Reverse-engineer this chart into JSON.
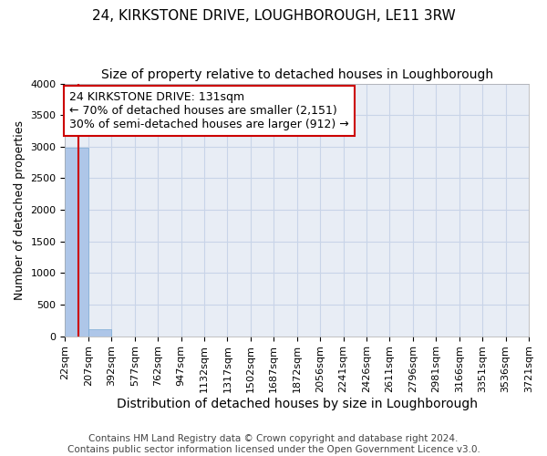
{
  "title": "24, KIRKSTONE DRIVE, LOUGHBOROUGH, LE11 3RW",
  "subtitle": "Size of property relative to detached houses in Loughborough",
  "xlabel": "Distribution of detached houses by size in Loughborough",
  "ylabel": "Number of detached properties",
  "bar_values": [
    2980,
    110,
    0,
    0,
    0,
    0,
    0,
    0,
    0,
    0,
    0,
    0,
    0,
    0,
    0,
    0,
    0,
    0,
    0,
    0
  ],
  "x_labels": [
    "22sqm",
    "207sqm",
    "392sqm",
    "577sqm",
    "762sqm",
    "947sqm",
    "1132sqm",
    "1317sqm",
    "1502sqm",
    "1687sqm",
    "1872sqm",
    "2056sqm",
    "2241sqm",
    "2426sqm",
    "2611sqm",
    "2796sqm",
    "2981sqm",
    "3166sqm",
    "3351sqm",
    "3536sqm",
    "3721sqm"
  ],
  "ylim": [
    0,
    4000
  ],
  "bar_color": "#aec6e8",
  "bar_edge_color": "#7aaad4",
  "grid_color": "#c8d4e8",
  "bg_color": "#e8edf5",
  "annotation_line1": "24 KIRKSTONE DRIVE: 131sqm",
  "annotation_line2": "← 70% of detached houses are smaller (2,151)",
  "annotation_line3": "30% of semi-detached houses are larger (912) →",
  "vline_color": "#cc0000",
  "annotation_box_color": "#cc0000",
  "footer_line1": "Contains HM Land Registry data © Crown copyright and database right 2024.",
  "footer_line2": "Contains public sector information licensed under the Open Government Licence v3.0.",
  "title_fontsize": 11,
  "subtitle_fontsize": 10,
  "xlabel_fontsize": 10,
  "ylabel_fontsize": 9,
  "tick_fontsize": 8,
  "annotation_fontsize": 9,
  "footer_fontsize": 7.5
}
